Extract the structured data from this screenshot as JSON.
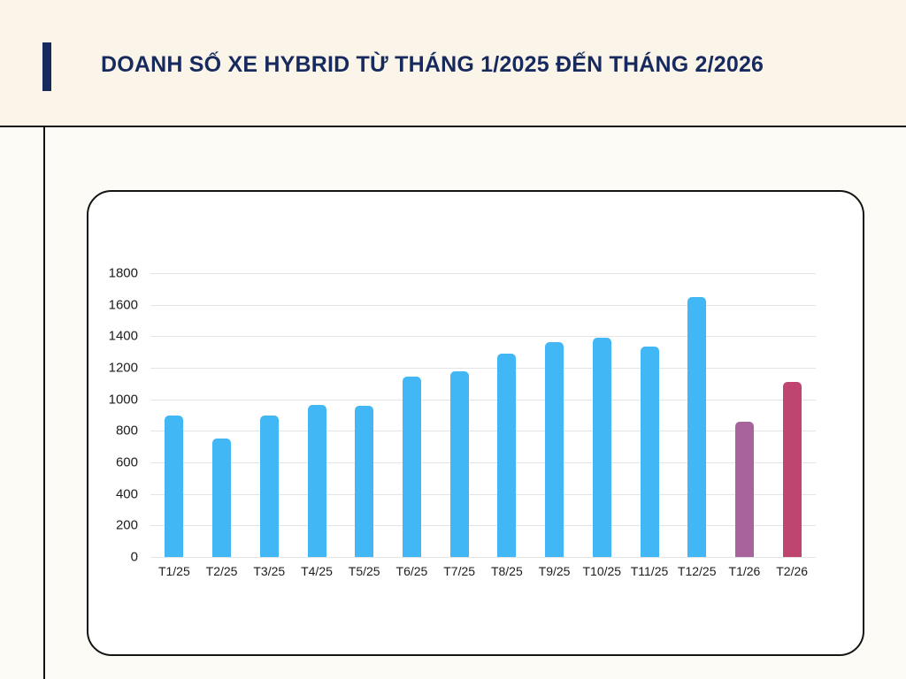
{
  "header": {
    "title": "DOANH SỐ XE HYBRID TỪ THÁNG 1/2025 ĐẾN THÁNG 2/2026",
    "title_color": "#172a5e",
    "accent_color": "#172a5e"
  },
  "chart_data": {
    "type": "bar",
    "title": "DOANH SỐ XE HYBRID TỪ THÁNG 1/2025 ĐẾN THÁNG 2/2026",
    "categories": [
      "T1/25",
      "T2/25",
      "T3/25",
      "T4/25",
      "T5/25",
      "T6/25",
      "T7/25",
      "T8/25",
      "T9/25",
      "T10/25",
      "T11/25",
      "T12/25",
      "T1/26",
      "T2/26"
    ],
    "values": [
      900,
      750,
      895,
      965,
      960,
      1145,
      1180,
      1290,
      1365,
      1390,
      1335,
      1650,
      860,
      1110
    ],
    "bar_colors": [
      "#41b7f5",
      "#41b7f5",
      "#41b7f5",
      "#41b7f5",
      "#41b7f5",
      "#41b7f5",
      "#41b7f5",
      "#41b7f5",
      "#41b7f5",
      "#41b7f5",
      "#41b7f5",
      "#41b7f5",
      "#a9639c",
      "#bf4470"
    ],
    "xlabel": "",
    "ylabel": "",
    "ylim": [
      0,
      1800
    ],
    "yticks": [
      0,
      200,
      400,
      600,
      800,
      1000,
      1200,
      1400,
      1600,
      1800
    ],
    "grid": true,
    "legend_position": "none",
    "gridline_color": "#e4e4e4",
    "tick_label_color": "#1c1c1c"
  }
}
